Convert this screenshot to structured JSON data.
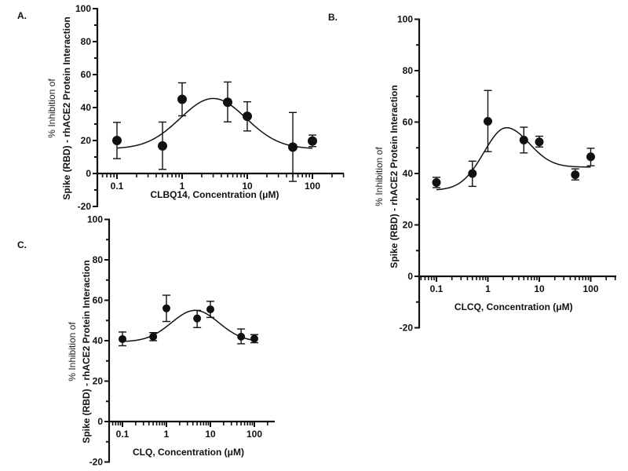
{
  "chart_data": [
    {
      "type": "scatter",
      "panel_label": "A.",
      "xlabel": "CLBQ14, Concentration  (μM)",
      "ylabel_line1": "% Inhibition of",
      "ylabel_line2": "Spike (RBD) - rhACE2 Protein Interaction",
      "xscale": "log",
      "xlim": [
        0.05,
        300
      ],
      "ylim": [
        -20,
        100
      ],
      "xticks": [
        0.1,
        1,
        10,
        100
      ],
      "xtick_labels": [
        "0.1",
        "1",
        "10",
        "100"
      ],
      "yticks": [
        -20,
        0,
        20,
        40,
        60,
        80,
        100
      ],
      "ytick_labels": [
        "-20",
        "0",
        "20",
        "40",
        "60",
        "80",
        "100"
      ],
      "x": [
        0.1,
        0.5,
        1,
        5,
        10,
        50,
        100
      ],
      "y": [
        20,
        16.7,
        45,
        43.2,
        34.7,
        16,
        19.7
      ],
      "err_low": [
        9,
        2.5,
        35,
        31.3,
        25.8,
        -4.8,
        16.3
      ],
      "err_high": [
        31,
        31.2,
        55,
        55.5,
        43.5,
        37,
        23.3
      ],
      "fit": {
        "model": "bell-shaped",
        "baseline": 15,
        "peak": 45.5,
        "peak_x": 3,
        "width_decades": 0.75
      }
    },
    {
      "type": "scatter",
      "panel_label": "B.",
      "xlabel": "CLCQ, Concentration  (μM)",
      "ylabel_line1": "% Inhibition of",
      "ylabel_line2": "Spike (RBD) - rhACE2 Protein Interaction",
      "xscale": "log",
      "xlim": [
        0.05,
        300
      ],
      "ylim": [
        -20,
        100
      ],
      "xticks": [
        0.1,
        1,
        10,
        100
      ],
      "xtick_labels": [
        "0.1",
        "1",
        "10",
        "100"
      ],
      "yticks": [
        -20,
        0,
        20,
        40,
        60,
        80,
        100
      ],
      "ytick_labels": [
        "-20",
        "0",
        "20",
        "40",
        "60",
        "80",
        "100"
      ],
      "x": [
        0.1,
        0.5,
        1,
        5,
        10,
        50,
        100
      ],
      "y": [
        36.5,
        40,
        60.3,
        53,
        52.3,
        39.5,
        46.5
      ],
      "err_low": [
        34.5,
        35,
        48.5,
        48,
        50.3,
        37.5,
        43
      ],
      "err_high": [
        38.5,
        44.8,
        72.3,
        58,
        54.5,
        41.8,
        49.8
      ],
      "fit": {
        "model": "bell-shaped",
        "baseline_left": 33.5,
        "baseline_right": 42.5,
        "peak": 57.8,
        "peak_x": 2.3,
        "width_decades": 0.65
      }
    },
    {
      "type": "scatter",
      "panel_label": "C.",
      "xlabel": "CLQ, Concentration  (μM)",
      "ylabel_line1": "% Inhibition of",
      "ylabel_line2": "Spike (RBD) - rhACE2 Protein Interaction",
      "xscale": "log",
      "xlim": [
        0.05,
        300
      ],
      "ylim": [
        -20,
        100
      ],
      "xticks": [
        0.1,
        1,
        10,
        100
      ],
      "xtick_labels": [
        "0.1",
        "1",
        "10",
        "100"
      ],
      "yticks": [
        -20,
        0,
        20,
        40,
        60,
        80,
        100
      ],
      "ytick_labels": [
        "-20",
        "0",
        "20",
        "40",
        "60",
        "80",
        "100"
      ],
      "x": [
        0.1,
        0.5,
        1,
        5,
        10,
        50,
        100
      ],
      "y": [
        40.8,
        42,
        56,
        51,
        55.5,
        42,
        41
      ],
      "err_low": [
        37.5,
        40,
        49.5,
        46.5,
        51.5,
        38.5,
        39
      ],
      "err_high": [
        44.3,
        44,
        62.5,
        55,
        59.5,
        45.8,
        43
      ],
      "fit": {
        "model": "bell-shaped",
        "baseline": 39.5,
        "peak": 55,
        "peak_x": 4.5,
        "width_decades": 0.8
      }
    }
  ],
  "colors": {
    "ink": "#111111",
    "background": "#ffffff"
  }
}
